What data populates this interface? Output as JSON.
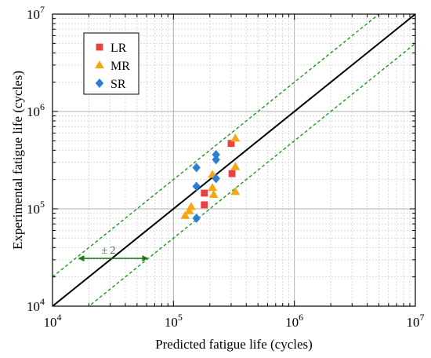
{
  "chart_data": {
    "type": "scatter",
    "xlabel": "Predicted fatigue life (cycles)",
    "ylabel": "Experimental fatigue life (cycles)",
    "xscale": "log",
    "yscale": "log",
    "xlim": [
      10000,
      10000000
    ],
    "ylim": [
      10000,
      10000000
    ],
    "x_ticks": [
      {
        "base": "10",
        "exp": "4",
        "value": 10000
      },
      {
        "base": "10",
        "exp": "5",
        "value": 100000
      },
      {
        "base": "10",
        "exp": "6",
        "value": 1000000
      },
      {
        "base": "10",
        "exp": "7",
        "value": 10000000
      }
    ],
    "y_ticks": [
      {
        "base": "10",
        "exp": "4",
        "value": 10000
      },
      {
        "base": "10",
        "exp": "5",
        "value": 100000
      },
      {
        "base": "10",
        "exp": "6",
        "value": 1000000
      },
      {
        "base": "10",
        "exp": "7",
        "value": 10000000
      }
    ],
    "grid": true,
    "legend_position": "top-left",
    "series": [
      {
        "name": "LR",
        "marker": "square",
        "color": "#e8413f",
        "points": [
          {
            "x": 180000,
            "y": 145000
          },
          {
            "x": 180000,
            "y": 110000
          },
          {
            "x": 300000,
            "y": 470000
          },
          {
            "x": 305000,
            "y": 230000
          }
        ]
      },
      {
        "name": "MR",
        "marker": "triangle",
        "color": "#f4a614",
        "points": [
          {
            "x": 125000,
            "y": 85000
          },
          {
            "x": 135000,
            "y": 95000
          },
          {
            "x": 140000,
            "y": 105000
          },
          {
            "x": 210000,
            "y": 225000
          },
          {
            "x": 210000,
            "y": 165000
          },
          {
            "x": 215000,
            "y": 140000
          },
          {
            "x": 325000,
            "y": 530000
          },
          {
            "x": 325000,
            "y": 270000
          },
          {
            "x": 325000,
            "y": 150000
          }
        ]
      },
      {
        "name": "SR",
        "marker": "diamond",
        "color": "#2a7fd4",
        "points": [
          {
            "x": 155000,
            "y": 265000
          },
          {
            "x": 155000,
            "y": 170000
          },
          {
            "x": 155000,
            "y": 80000
          },
          {
            "x": 225000,
            "y": 360000
          },
          {
            "x": 225000,
            "y": 320000
          },
          {
            "x": 225000,
            "y": 205000
          }
        ]
      }
    ],
    "reference_lines": [
      {
        "kind": "identity",
        "factor": 1,
        "color": "#000000",
        "style": "solid"
      },
      {
        "kind": "band-upper",
        "factor": 2,
        "color": "#1a9a1a",
        "style": "dashed"
      },
      {
        "kind": "band-lower",
        "factor": 0.5,
        "color": "#1a9a1a",
        "style": "dashed"
      }
    ],
    "annotation": {
      "text": "± 2",
      "x_from": 16000,
      "x_to": 63000,
      "y": 31000,
      "color": "#1a7a1a"
    }
  }
}
